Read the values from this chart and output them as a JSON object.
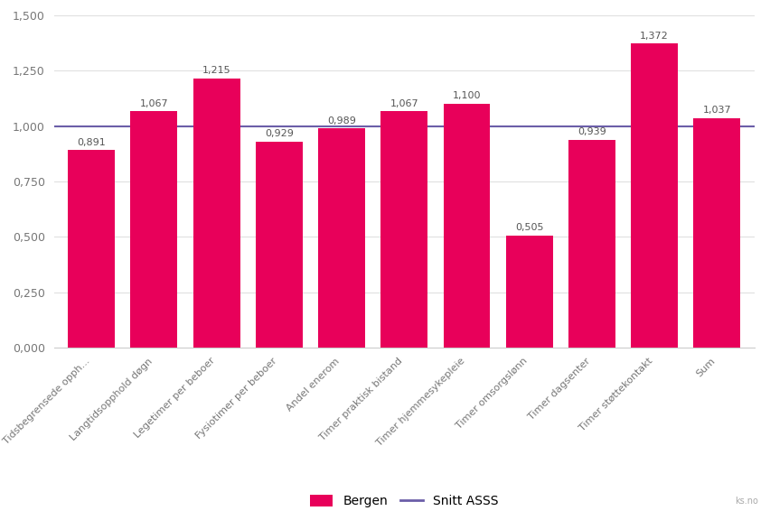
{
  "categories": [
    "Tidsbegrensede opph...",
    "Langtidsopphold døgn",
    "Legetimer per beboer",
    "Fysiotimer per beboer",
    "Andel enerom",
    "Timer praktisk bistand",
    "Timer hjemmesykepleie",
    "Timer omsorgslønn",
    "Timer dagsenter",
    "Timer støttekontakt",
    "Sum"
  ],
  "values": [
    0.891,
    1.067,
    1.215,
    0.929,
    0.989,
    1.067,
    1.1,
    0.505,
    0.939,
    1.372,
    1.037
  ],
  "bar_color": "#E8005A",
  "snitt_value": 1.0,
  "snitt_color": "#6B5EA8",
  "ylim": [
    0,
    1.5
  ],
  "yticks": [
    0.0,
    0.25,
    0.5,
    0.75,
    1.0,
    1.25,
    1.5
  ],
  "ytick_labels": [
    "0,000",
    "0,250",
    "0,500",
    "0,750",
    "1,000",
    "1,250",
    "1,500"
  ],
  "value_labels": [
    "0,891",
    "1,067",
    "1,215",
    "0,929",
    "0,989",
    "1,067",
    "1,100",
    "0,505",
    "0,939",
    "1,372",
    "1,037"
  ],
  "legend_bergen": "Bergen",
  "legend_snitt": "Snitt ASSS",
  "background_color": "#ffffff",
  "grid_color": "#e0e0e0",
  "label_fontsize": 8.0,
  "value_fontsize": 8.0,
  "ytick_fontsize": 9,
  "watermark": "ks.no"
}
